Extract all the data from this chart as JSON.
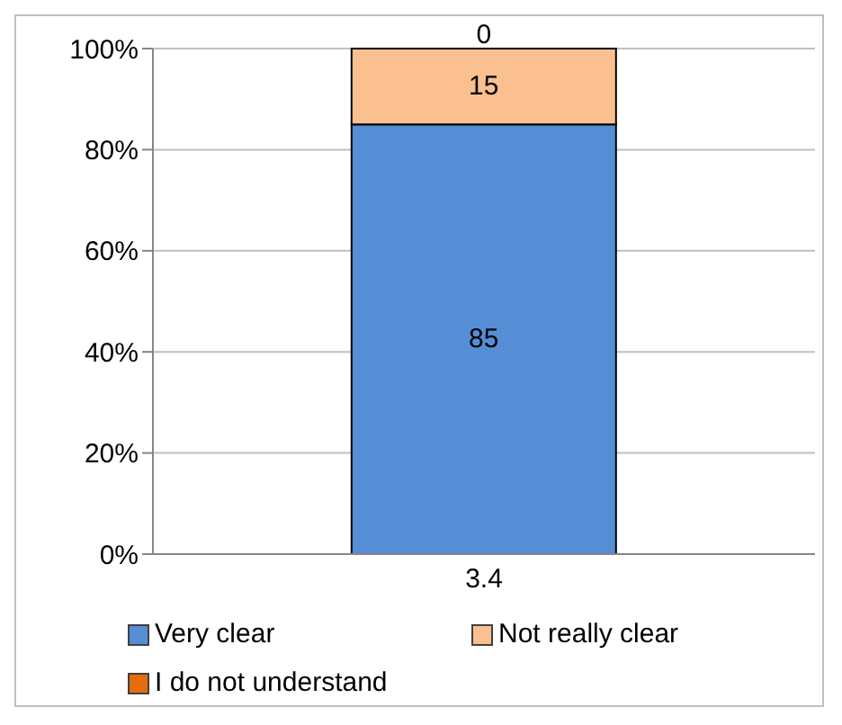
{
  "chart_data": {
    "type": "bar",
    "stacked": true,
    "categories": [
      "3.4"
    ],
    "series": [
      {
        "name": "Very clear",
        "color": "#558ed5",
        "values": [
          85
        ]
      },
      {
        "name": "Not really clear",
        "color": "#fac090",
        "values": [
          15
        ]
      },
      {
        "name": "I do not understand",
        "color": "#e46c0a",
        "values": [
          0
        ]
      }
    ],
    "ylim": [
      0,
      100
    ],
    "yticks": [
      {
        "value": 0,
        "label": "0%"
      },
      {
        "value": 20,
        "label": "20%"
      },
      {
        "value": 40,
        "label": "40%"
      },
      {
        "value": 60,
        "label": "60%"
      },
      {
        "value": 80,
        "label": "80%"
      },
      {
        "value": 100,
        "label": "100%"
      }
    ],
    "grid": "y",
    "legend": "bottom",
    "data_labels": true
  }
}
